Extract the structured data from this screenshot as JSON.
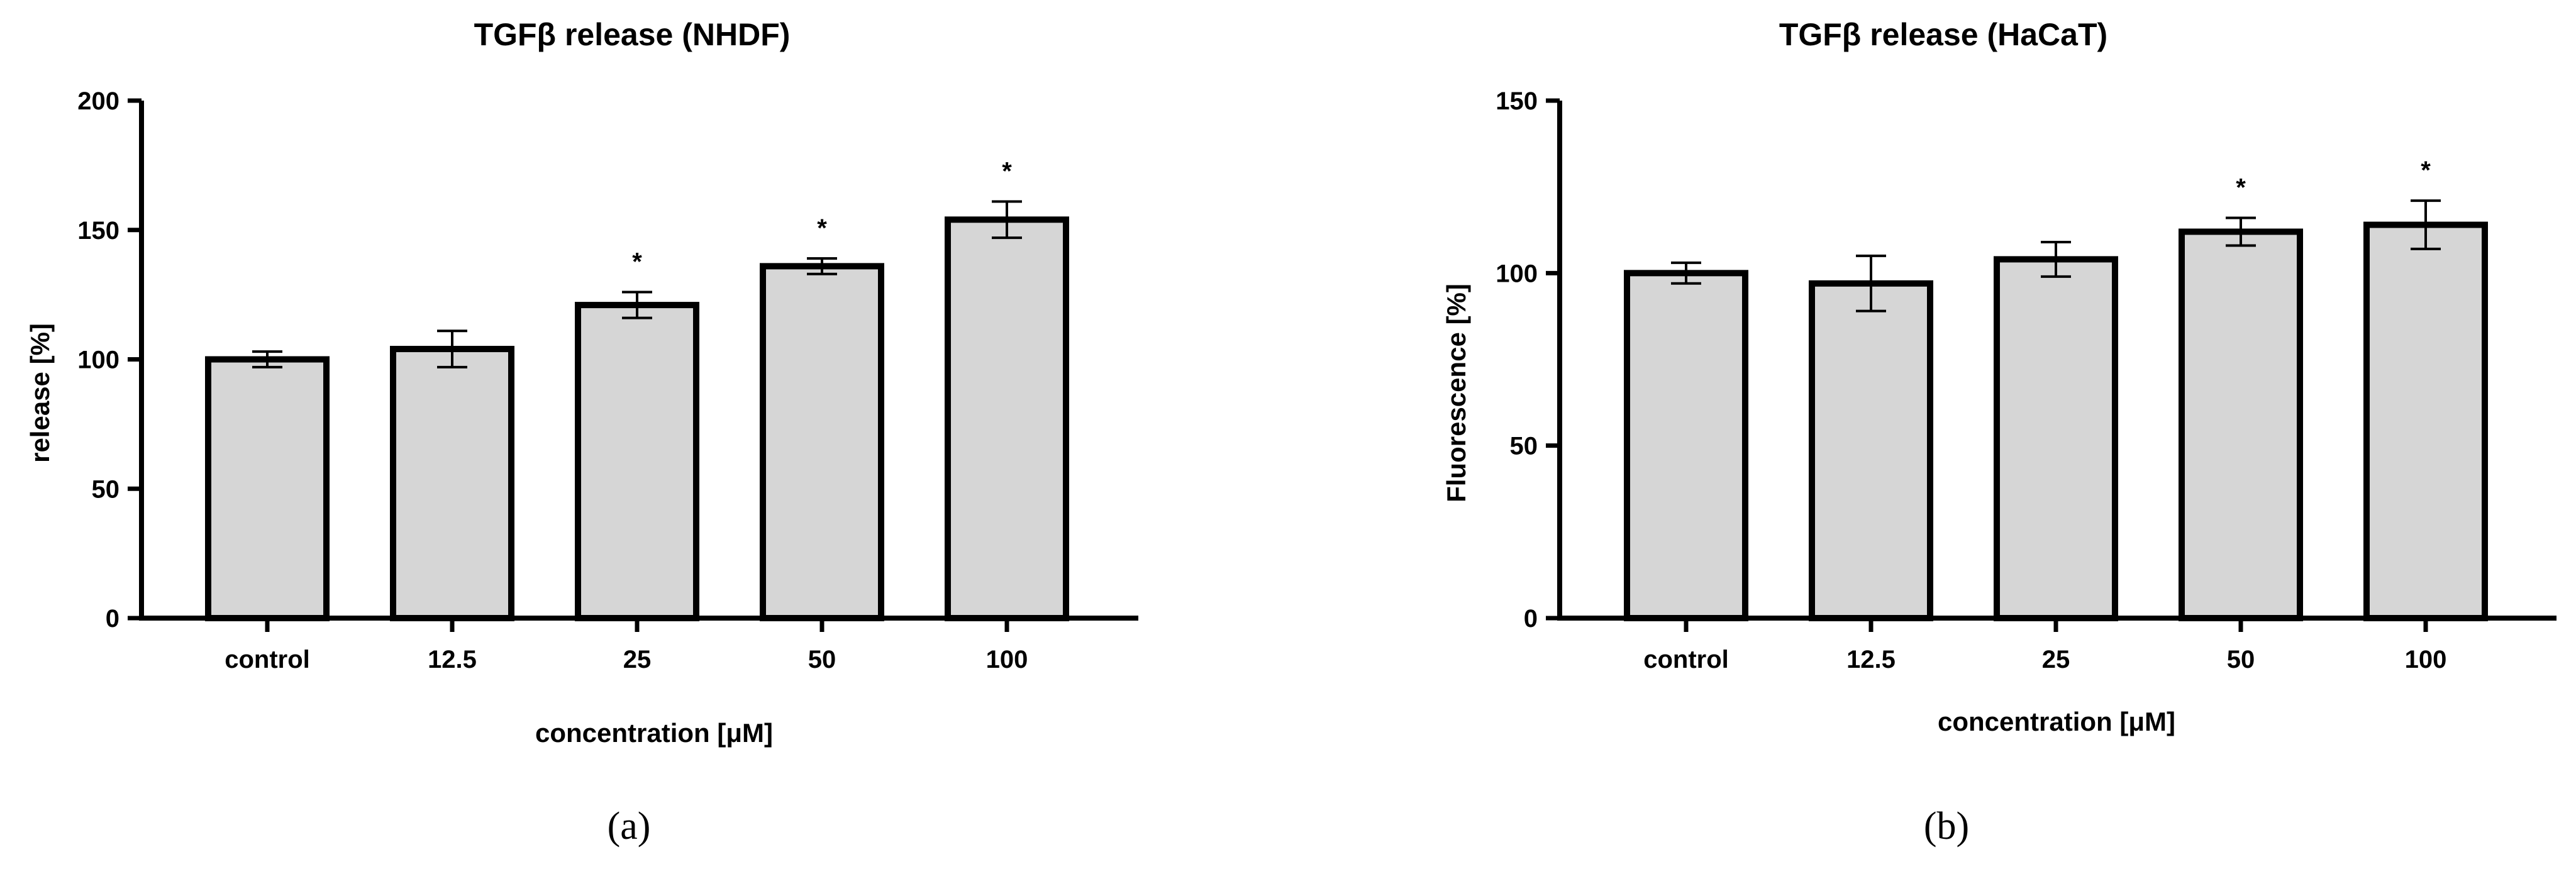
{
  "chart_data": [
    {
      "type": "bar",
      "title": "TGFβ release (NHDF)",
      "xlabel": "concentration [μM]",
      "ylabel": "release [%]",
      "categories": [
        "control",
        "12.5",
        "25",
        "50",
        "100"
      ],
      "values": [
        100,
        104,
        121,
        136,
        154
      ],
      "errors": [
        3,
        7,
        5,
        3,
        7
      ],
      "significance": [
        "",
        "",
        "*",
        "*",
        "*"
      ],
      "ylim": [
        0,
        200
      ],
      "yticks": [
        "0",
        "50",
        "100",
        "150",
        "200"
      ],
      "grid": false,
      "colors": {
        "bar_fill": "#d6d6d6",
        "bar_stroke": "#000000"
      },
      "panel_label": "(a)"
    },
    {
      "type": "bar",
      "title": "TGFβ release (HaCaT)",
      "xlabel": "concentration [μM]",
      "ylabel": "Fluorescence [%]",
      "categories": [
        "control",
        "12.5",
        "25",
        "50",
        "100"
      ],
      "values": [
        100,
        97,
        104,
        112,
        114
      ],
      "errors": [
        3,
        8,
        5,
        4,
        7
      ],
      "significance": [
        "",
        "",
        "",
        "*",
        "*"
      ],
      "ylim": [
        0,
        150
      ],
      "yticks": [
        "0",
        "50",
        "100",
        "150"
      ],
      "grid": false,
      "colors": {
        "bar_fill": "#d6d6d6",
        "bar_stroke": "#000000"
      },
      "panel_label": "(b)"
    }
  ]
}
